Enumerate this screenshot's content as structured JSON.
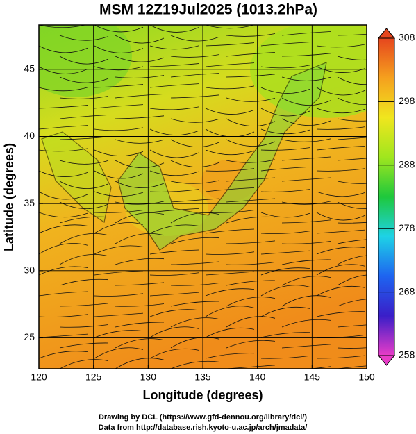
{
  "chart_data": {
    "type": "vector-field",
    "title": "MSM 12Z19Jul2025 (1013.2hPa)",
    "x_label": "Longitude (degrees)",
    "y_label": "Latitude  (degrees)",
    "xlim": [
      120,
      150
    ],
    "xticks": [
      120,
      125,
      130,
      135,
      140,
      145,
      150
    ],
    "ylim": [
      22.7,
      48.3
    ],
    "yticks": [
      25,
      30,
      35,
      40,
      45
    ],
    "grid": true,
    "colorbar": {
      "lim": [
        258,
        308
      ],
      "ticks": [
        258,
        268,
        278,
        288,
        298,
        308
      ],
      "colormap": [
        "#e83cc8",
        "#3a1ec8",
        "#1e64f0",
        "#1ed2e6",
        "#1ec83c",
        "#a0e61e",
        "#f0e61e",
        "#f5a01e",
        "#e6461e"
      ]
    },
    "credits": [
      "Drawing by DCL (https://www.gfd-dennou.org/library/dcl/)",
      "Data from http://database.rish.kyoto-u.ac.jp/arch/jmadata/"
    ]
  }
}
